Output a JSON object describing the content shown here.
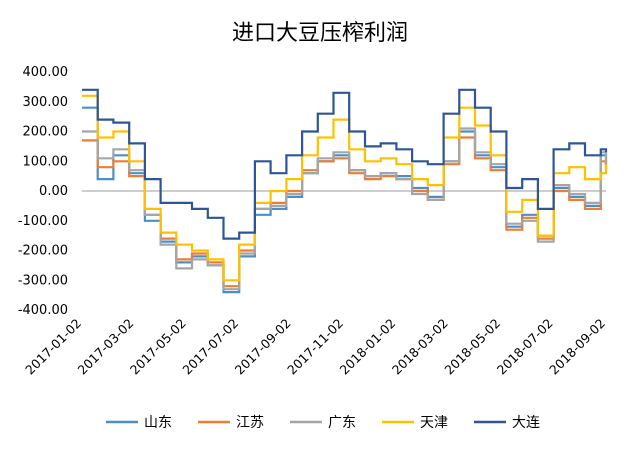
{
  "chart_data": {
    "type": "line",
    "title": "进口大豆压榨利润",
    "xlabel": "",
    "ylabel": "",
    "ylim": [
      -400,
      400
    ],
    "yticks": [
      400,
      300,
      200,
      100,
      0,
      -100,
      -200,
      -300,
      -400
    ],
    "ytick_labels": [
      "400.00",
      "300.00",
      "200.00",
      "100.00",
      "0.00",
      "-100.00",
      "-200.00",
      "-300.00",
      "-400.00"
    ],
    "x_tick_labels": [
      "2017-01-02",
      "2017-03-02",
      "2017-05-02",
      "2017-07-02",
      "2017-09-02",
      "2017-11-02",
      "2018-01-02",
      "2018-03-02",
      "2018-05-02",
      "2018-07-02",
      "2018-09-02"
    ],
    "x": [
      0,
      0.3,
      0.6,
      0.9,
      1.2,
      1.5,
      1.8,
      2.1,
      2.4,
      2.7,
      3.0,
      3.3,
      3.6,
      3.9,
      4.2,
      4.5,
      4.8,
      5.1,
      5.4,
      5.7,
      6.0,
      6.3,
      6.6,
      6.9,
      7.2,
      7.5,
      7.8,
      8.1,
      8.4,
      8.7,
      9.0,
      9.3,
      9.6,
      9.9,
      10.0
    ],
    "grid": false,
    "legend": "bottom",
    "series": [
      {
        "name": "山东",
        "color": "#4A90C8",
        "values": [
          280,
          40,
          120,
          60,
          -100,
          -170,
          -240,
          -220,
          -250,
          -340,
          -220,
          -80,
          -60,
          -20,
          60,
          100,
          120,
          70,
          50,
          60,
          50,
          10,
          -20,
          100,
          200,
          120,
          80,
          -120,
          -80,
          -150,
          10,
          -20,
          -50,
          120,
          80
        ]
      },
      {
        "name": "江苏",
        "color": "#ED7D31",
        "values": [
          170,
          80,
          100,
          50,
          -80,
          -160,
          -230,
          -210,
          -240,
          -320,
          -200,
          -60,
          -40,
          0,
          70,
          100,
          110,
          60,
          40,
          50,
          40,
          0,
          -30,
          90,
          180,
          110,
          70,
          -130,
          -90,
          -160,
          0,
          -30,
          -60,
          100,
          70
        ]
      },
      {
        "name": "广东",
        "color": "#A5A5A5",
        "values": [
          200,
          110,
          140,
          70,
          -80,
          -180,
          -260,
          -230,
          -250,
          -330,
          -210,
          -60,
          -50,
          -10,
          60,
          110,
          130,
          70,
          50,
          60,
          40,
          -10,
          -30,
          100,
          210,
          130,
          90,
          -110,
          -100,
          -170,
          20,
          -10,
          -40,
          130,
          80
        ]
      },
      {
        "name": "天津",
        "color": "#FFC000",
        "values": [
          320,
          180,
          200,
          100,
          -60,
          -140,
          -180,
          -200,
          -230,
          -300,
          -180,
          -40,
          0,
          40,
          120,
          180,
          240,
          140,
          100,
          110,
          90,
          40,
          20,
          180,
          280,
          220,
          120,
          -70,
          -30,
          -150,
          60,
          80,
          40,
          60,
          90
        ]
      },
      {
        "name": "大连",
        "color": "#2F5597",
        "values": [
          340,
          240,
          230,
          160,
          40,
          -40,
          -40,
          -60,
          -90,
          -160,
          -140,
          100,
          60,
          120,
          200,
          260,
          330,
          200,
          150,
          160,
          140,
          100,
          90,
          260,
          340,
          280,
          200,
          10,
          40,
          -60,
          140,
          160,
          120,
          140,
          130
        ]
      }
    ]
  }
}
